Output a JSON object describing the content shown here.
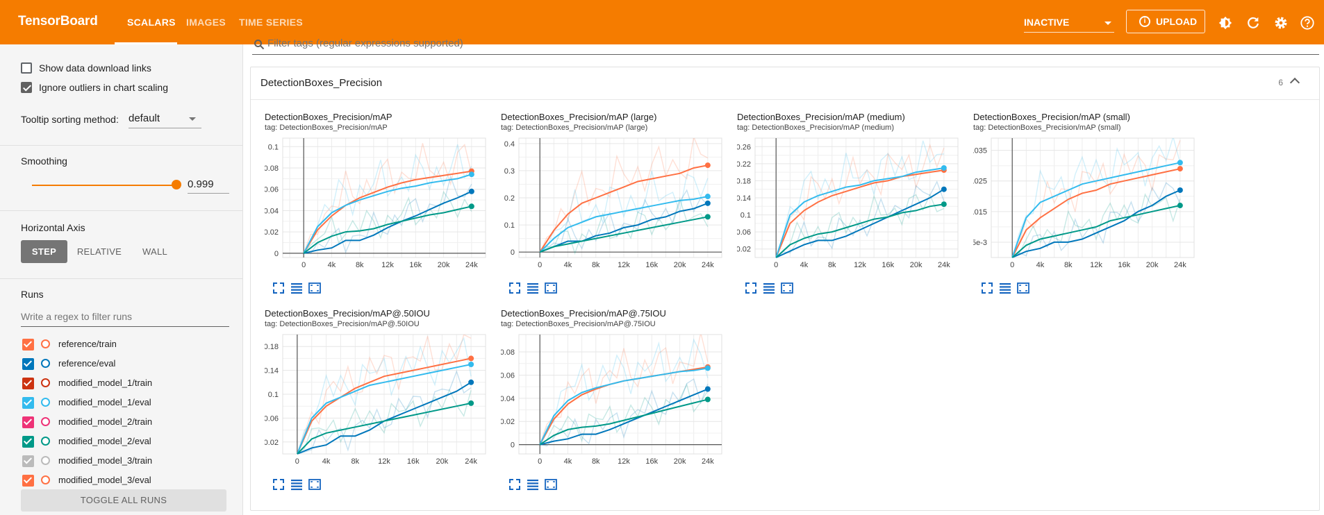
{
  "app": {
    "brand": "TensorBoard",
    "tabs": [
      {
        "label": "SCALARS",
        "active": true
      },
      {
        "label": "IMAGES",
        "active": false
      },
      {
        "label": "TIME SERIES",
        "active": false
      }
    ],
    "status_select": "INACTIVE",
    "upload_label": "UPLOAD",
    "icons": [
      "brightness-icon",
      "refresh-icon",
      "settings-icon",
      "help-icon"
    ],
    "accent_color": "#f57c00"
  },
  "sidebar": {
    "show_download_links": {
      "label": "Show data download links",
      "checked": false
    },
    "ignore_outliers": {
      "label": "Ignore outliers in chart scaling",
      "checked": true
    },
    "tooltip_sorting": {
      "label": "Tooltip sorting method:",
      "value": "default"
    },
    "smoothing": {
      "label": "Smoothing",
      "value": "0.999",
      "level": 0.999
    },
    "horizontal_axis": {
      "label": "Horizontal Axis",
      "options": [
        {
          "label": "STEP",
          "active": true
        },
        {
          "label": "RELATIVE",
          "active": false
        },
        {
          "label": "WALL",
          "active": false
        }
      ]
    },
    "runs": {
      "label": "Runs",
      "filter_placeholder": "Write a regex to filter runs",
      "items": [
        {
          "name": "reference/train",
          "color": "#ff7043",
          "checked": true
        },
        {
          "name": "reference/eval",
          "color": "#0077bb",
          "checked": true
        },
        {
          "name": "modified_model_1/train",
          "color": "#cc3311",
          "checked": true
        },
        {
          "name": "modified_model_1/eval",
          "color": "#33bbee",
          "checked": true
        },
        {
          "name": "modified_model_2/train",
          "color": "#ee3377",
          "checked": true
        },
        {
          "name": "modified_model_2/eval",
          "color": "#009988",
          "checked": true
        },
        {
          "name": "modified_model_3/train",
          "color": "#bbbbbb",
          "checked": true
        },
        {
          "name": "modified_model_3/eval",
          "color": "#ff7043",
          "checked": true
        }
      ],
      "toggle_label": "TOGGLE ALL RUNS"
    }
  },
  "main": {
    "filter_placeholder": "Filter tags (regular expressions supported)",
    "group": {
      "title": "DetectionBoxes_Precision",
      "count": "6"
    }
  },
  "chart_data": [
    {
      "type": "line",
      "title": "DetectionBoxes_Precision/mAP",
      "tag": "tag: DetectionBoxes_Precision/mAP",
      "xticks": [
        "0",
        "4k",
        "8k",
        "12k",
        "16k",
        "20k",
        "24k"
      ],
      "yticks": [
        "0",
        "0.02",
        "0.04",
        "0.06",
        "0.08",
        "0.1"
      ],
      "xlim": [
        -3000,
        26000
      ],
      "ylim": [
        -0.004,
        0.108
      ],
      "x": [
        0,
        2000,
        4000,
        6000,
        8000,
        10000,
        12000,
        14000,
        16000,
        18000,
        20000,
        22000,
        24000
      ],
      "series": [
        {
          "color": "#ff7043",
          "values": [
            0,
            0.022,
            0.035,
            0.045,
            0.052,
            0.057,
            0.062,
            0.066,
            0.069,
            0.071,
            0.073,
            0.075,
            0.077
          ]
        },
        {
          "color": "#33bbee",
          "values": [
            0,
            0.025,
            0.038,
            0.045,
            0.05,
            0.054,
            0.058,
            0.061,
            0.063,
            0.066,
            0.068,
            0.07,
            0.074
          ]
        },
        {
          "color": "#0077bb",
          "values": [
            0,
            0.003,
            0.005,
            0.012,
            0.012,
            0.017,
            0.024,
            0.03,
            0.035,
            0.041,
            0.047,
            0.052,
            0.058
          ]
        },
        {
          "color": "#009988",
          "values": [
            0,
            0.01,
            0.016,
            0.02,
            0.021,
            0.023,
            0.027,
            0.03,
            0.033,
            0.036,
            0.038,
            0.041,
            0.044
          ]
        }
      ]
    },
    {
      "type": "line",
      "title": "DetectionBoxes_Precision/mAP (large)",
      "tag": "tag: DetectionBoxes_Precision/mAP (large)",
      "xticks": [
        "0",
        "4k",
        "8k",
        "12k",
        "16k",
        "20k",
        "24k"
      ],
      "yticks": [
        "0",
        "0.1",
        "0.2",
        "0.3",
        "0.4"
      ],
      "xlim": [
        -3000,
        26000
      ],
      "ylim": [
        -0.02,
        0.42
      ],
      "x": [
        0,
        2000,
        4000,
        6000,
        8000,
        10000,
        12000,
        14000,
        16000,
        18000,
        20000,
        22000,
        24000
      ],
      "series": [
        {
          "color": "#ff7043",
          "values": [
            0,
            0.08,
            0.14,
            0.18,
            0.2,
            0.22,
            0.24,
            0.26,
            0.27,
            0.28,
            0.29,
            0.31,
            0.32
          ]
        },
        {
          "color": "#33bbee",
          "values": [
            0,
            0.05,
            0.09,
            0.11,
            0.13,
            0.14,
            0.15,
            0.16,
            0.17,
            0.18,
            0.19,
            0.195,
            0.205
          ]
        },
        {
          "color": "#0077bb",
          "values": [
            0,
            0.02,
            0.04,
            0.04,
            0.06,
            0.07,
            0.09,
            0.1,
            0.12,
            0.13,
            0.15,
            0.16,
            0.18
          ]
        },
        {
          "color": "#009988",
          "values": [
            0,
            0.02,
            0.03,
            0.04,
            0.05,
            0.06,
            0.07,
            0.08,
            0.09,
            0.1,
            0.11,
            0.12,
            0.13
          ]
        }
      ]
    },
    {
      "type": "line",
      "title": "DetectionBoxes_Precision/mAP (medium)",
      "tag": "tag: DetectionBoxes_Precision/mAP (medium)",
      "xticks": [
        "0",
        "4k",
        "8k",
        "12k",
        "16k",
        "20k",
        "24k"
      ],
      "yticks": [
        "0.02",
        "0.06",
        "0.1",
        "0.14",
        "0.18",
        "0.22",
        "0.26"
      ],
      "xlim": [
        -3000,
        26000
      ],
      "ylim": [
        0,
        0.28
      ],
      "x": [
        0,
        2000,
        4000,
        6000,
        8000,
        10000,
        12000,
        14000,
        16000,
        18000,
        20000,
        22000,
        24000
      ],
      "series": [
        {
          "color": "#ff7043",
          "values": [
            0,
            0.08,
            0.11,
            0.13,
            0.145,
            0.155,
            0.165,
            0.175,
            0.18,
            0.19,
            0.195,
            0.2,
            0.205
          ]
        },
        {
          "color": "#33bbee",
          "values": [
            0,
            0.1,
            0.13,
            0.145,
            0.155,
            0.165,
            0.17,
            0.18,
            0.185,
            0.19,
            0.2,
            0.205,
            0.21
          ]
        },
        {
          "color": "#0077bb",
          "values": [
            0,
            0.015,
            0.03,
            0.04,
            0.04,
            0.05,
            0.065,
            0.08,
            0.095,
            0.11,
            0.125,
            0.14,
            0.16
          ]
        },
        {
          "color": "#009988",
          "values": [
            0,
            0.03,
            0.045,
            0.055,
            0.06,
            0.07,
            0.08,
            0.09,
            0.095,
            0.105,
            0.11,
            0.12,
            0.125
          ]
        }
      ]
    },
    {
      "type": "line",
      "title": "DetectionBoxes_Precision/mAP (small)",
      "tag": "tag: DetectionBoxes_Precision/mAP (small)",
      "xticks": [
        "0",
        "4k",
        "8k",
        "12k",
        "16k",
        "20k",
        "24k"
      ],
      "yticks": [
        "5e-3",
        "0.015",
        "0.025",
        "0.035"
      ],
      "xlim": [
        -3000,
        26000
      ],
      "ylim": [
        0,
        0.039
      ],
      "x": [
        0,
        2000,
        4000,
        6000,
        8000,
        10000,
        12000,
        14000,
        16000,
        18000,
        20000,
        22000,
        24000
      ],
      "series": [
        {
          "color": "#ff7043",
          "values": [
            0,
            0.009,
            0.013,
            0.016,
            0.019,
            0.021,
            0.022,
            0.024,
            0.025,
            0.026,
            0.027,
            0.028,
            0.029
          ]
        },
        {
          "color": "#33bbee",
          "values": [
            0,
            0.013,
            0.018,
            0.02,
            0.022,
            0.024,
            0.025,
            0.026,
            0.027,
            0.028,
            0.029,
            0.03,
            0.031
          ]
        },
        {
          "color": "#0077bb",
          "values": [
            0,
            0.002,
            0.003,
            0.005,
            0.005,
            0.006,
            0.008,
            0.01,
            0.012,
            0.015,
            0.017,
            0.02,
            0.022
          ]
        },
        {
          "color": "#009988",
          "values": [
            0,
            0.004,
            0.006,
            0.007,
            0.008,
            0.009,
            0.01,
            0.012,
            0.013,
            0.014,
            0.015,
            0.016,
            0.017
          ]
        }
      ]
    },
    {
      "type": "line",
      "title": "DetectionBoxes_Precision/mAP@.50IOU",
      "tag": "tag: DetectionBoxes_Precision/mAP@.50IOU",
      "xticks": [
        "0",
        "4k",
        "8k",
        "12k",
        "16k",
        "20k",
        "24k"
      ],
      "yticks": [
        "0.02",
        "0.06",
        "0.1",
        "0.14",
        "0.18"
      ],
      "xlim": [
        -2000,
        26000
      ],
      "ylim": [
        0,
        0.2
      ],
      "x": [
        0,
        2000,
        4000,
        6000,
        8000,
        10000,
        12000,
        14000,
        16000,
        18000,
        20000,
        22000,
        24000
      ],
      "series": [
        {
          "color": "#ff7043",
          "values": [
            0,
            0.055,
            0.08,
            0.095,
            0.11,
            0.12,
            0.13,
            0.135,
            0.14,
            0.145,
            0.15,
            0.155,
            0.16
          ]
        },
        {
          "color": "#33bbee",
          "values": [
            0,
            0.06,
            0.085,
            0.095,
            0.105,
            0.115,
            0.12,
            0.125,
            0.13,
            0.135,
            0.14,
            0.145,
            0.15
          ]
        },
        {
          "color": "#0077bb",
          "values": [
            0,
            0.01,
            0.015,
            0.03,
            0.03,
            0.04,
            0.055,
            0.065,
            0.075,
            0.085,
            0.095,
            0.105,
            0.12
          ]
        },
        {
          "color": "#009988",
          "values": [
            0,
            0.025,
            0.035,
            0.04,
            0.045,
            0.05,
            0.055,
            0.06,
            0.065,
            0.07,
            0.075,
            0.08,
            0.085
          ]
        }
      ]
    },
    {
      "type": "line",
      "title": "DetectionBoxes_Precision/mAP@.75IOU",
      "tag": "tag: DetectionBoxes_Precision/mAP@.75IOU",
      "xticks": [
        "0",
        "4k",
        "8k",
        "12k",
        "16k",
        "20k",
        "24k"
      ],
      "yticks": [
        "0",
        "0.02",
        "0.04",
        "0.06",
        "0.08"
      ],
      "xlim": [
        -3000,
        26000
      ],
      "ylim": [
        -0.008,
        0.095
      ],
      "x": [
        0,
        2000,
        4000,
        6000,
        8000,
        10000,
        12000,
        14000,
        16000,
        18000,
        20000,
        22000,
        24000
      ],
      "series": [
        {
          "color": "#ff7043",
          "values": [
            0,
            0.022,
            0.035,
            0.043,
            0.048,
            0.052,
            0.055,
            0.057,
            0.059,
            0.061,
            0.063,
            0.065,
            0.067
          ]
        },
        {
          "color": "#33bbee",
          "values": [
            0,
            0.025,
            0.038,
            0.045,
            0.049,
            0.052,
            0.055,
            0.057,
            0.059,
            0.061,
            0.063,
            0.064,
            0.066
          ]
        },
        {
          "color": "#0077bb",
          "values": [
            0,
            0.003,
            0.005,
            0.009,
            0.009,
            0.013,
            0.018,
            0.023,
            0.028,
            0.033,
            0.038,
            0.043,
            0.048
          ]
        },
        {
          "color": "#009988",
          "values": [
            0,
            0.008,
            0.013,
            0.015,
            0.016,
            0.018,
            0.021,
            0.024,
            0.027,
            0.03,
            0.033,
            0.036,
            0.039
          ]
        }
      ]
    }
  ]
}
